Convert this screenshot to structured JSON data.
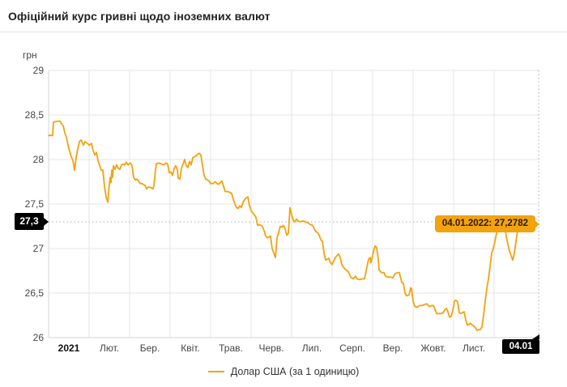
{
  "header": {
    "title": "Офіційний курс гривні щодо іноземних валют"
  },
  "colors": {
    "accent": "#f2a30e",
    "grid": "#e6e6e6",
    "axis": "#d6d6d6",
    "dotted": "#aaaaaa",
    "marker_bg": "#000000",
    "marker_text": "#ffffff"
  },
  "tooltip": {
    "text": "04.01.2022: 27,2782"
  },
  "markers": {
    "y_label": "27,3",
    "x_label": "04.01"
  },
  "legend": {
    "label": "Долар США (за 1 одиницю)"
  },
  "chart_data": {
    "type": "line",
    "title": "Офіційний курс гривні щодо іноземних валют",
    "y_unit": "грн",
    "ylim": [
      26,
      29
    ],
    "xlim_months": [
      0,
      12.13
    ],
    "grid": true,
    "legend_position": "bottom",
    "y_ticks": [
      {
        "label": "29",
        "value": 29
      },
      {
        "label": "28,5",
        "value": 28.5
      },
      {
        "label": "28",
        "value": 28
      },
      {
        "label": "27,5",
        "value": 27.5
      },
      {
        "label": "27",
        "value": 27
      },
      {
        "label": "26,5",
        "value": 26.5
      },
      {
        "label": "26",
        "value": 26
      }
    ],
    "x_tick_labels": [
      "2021",
      "Лют.",
      "Бер.",
      "Квіт.",
      "Трав.",
      "Черв.",
      "Лип.",
      "Серп.",
      "Вер.",
      "Жовт.",
      "Лист."
    ],
    "highlight": {
      "date_label": "04.01",
      "tooltip": "04.01.2022: 27,2782",
      "value": 27.2782,
      "y_level": 27.3
    },
    "series": [
      {
        "name": "Долар США (за 1 одиницю)",
        "x_unit": "months since 2021-01-01",
        "points": [
          [
            0,
            28.27
          ],
          [
            0.1,
            28.27
          ],
          [
            0.12,
            28.42
          ],
          [
            0.22,
            28.43
          ],
          [
            0.28,
            28.43
          ],
          [
            0.32,
            28.4
          ],
          [
            0.36,
            28.38
          ],
          [
            0.4,
            28.3
          ],
          [
            0.44,
            28.25
          ],
          [
            0.5,
            28.12
          ],
          [
            0.56,
            28.03
          ],
          [
            0.6,
            27.99
          ],
          [
            0.64,
            27.88
          ],
          [
            0.68,
            28.02
          ],
          [
            0.72,
            28.12
          ],
          [
            0.76,
            28.2
          ],
          [
            0.8,
            28.22
          ],
          [
            0.86,
            28.16
          ],
          [
            0.9,
            28.2
          ],
          [
            0.96,
            28.18
          ],
          [
            1,
            28.16
          ],
          [
            1.06,
            28.18
          ],
          [
            1.1,
            28.1
          ],
          [
            1.14,
            28.05
          ],
          [
            1.18,
            28.08
          ],
          [
            1.22,
            27.99
          ],
          [
            1.26,
            27.93
          ],
          [
            1.3,
            27.88
          ],
          [
            1.34,
            27.88
          ],
          [
            1.38,
            27.7
          ],
          [
            1.42,
            27.58
          ],
          [
            1.46,
            27.52
          ],
          [
            1.48,
            27.62
          ],
          [
            1.5,
            27.72
          ],
          [
            1.52,
            27.8
          ],
          [
            1.54,
            27.74
          ],
          [
            1.56,
            27.88
          ],
          [
            1.58,
            27.8
          ],
          [
            1.6,
            27.93
          ],
          [
            1.64,
            27.89
          ],
          [
            1.68,
            27.94
          ],
          [
            1.72,
            27.9
          ],
          [
            1.76,
            27.89
          ],
          [
            1.8,
            27.94
          ],
          [
            1.84,
            27.95
          ],
          [
            1.88,
            27.94
          ],
          [
            1.92,
            27.97
          ],
          [
            1.96,
            27.94
          ],
          [
            2.02,
            27.96
          ],
          [
            2.06,
            27.93
          ],
          [
            2.1,
            27.8
          ],
          [
            2.14,
            27.77
          ],
          [
            2.18,
            27.78
          ],
          [
            2.22,
            27.76
          ],
          [
            2.26,
            27.73
          ],
          [
            2.3,
            27.73
          ],
          [
            2.34,
            27.72
          ],
          [
            2.38,
            27.71
          ],
          [
            2.42,
            27.67
          ],
          [
            2.46,
            27.69
          ],
          [
            2.5,
            27.69
          ],
          [
            2.54,
            27.68
          ],
          [
            2.58,
            27.67
          ],
          [
            2.6,
            27.71
          ],
          [
            2.64,
            27.88
          ],
          [
            2.66,
            27.95
          ],
          [
            2.72,
            27.96
          ],
          [
            2.78,
            27.95
          ],
          [
            2.84,
            27.94
          ],
          [
            2.9,
            27.96
          ],
          [
            2.94,
            27.95
          ],
          [
            2.98,
            27.85
          ],
          [
            3.02,
            27.86
          ],
          [
            3.06,
            27.82
          ],
          [
            3.1,
            27.9
          ],
          [
            3.14,
            27.93
          ],
          [
            3.18,
            27.88
          ],
          [
            3.2,
            27.79
          ],
          [
            3.24,
            27.78
          ],
          [
            3.28,
            27.9
          ],
          [
            3.32,
            27.95
          ],
          [
            3.36,
            28
          ],
          [
            3.4,
            27.93
          ],
          [
            3.44,
            27.91
          ],
          [
            3.48,
            27.98
          ],
          [
            3.52,
            27.94
          ],
          [
            3.56,
            28.02
          ],
          [
            3.6,
            28.03
          ],
          [
            3.64,
            28.04
          ],
          [
            3.68,
            28.06
          ],
          [
            3.72,
            28.07
          ],
          [
            3.76,
            28.05
          ],
          [
            3.8,
            27.93
          ],
          [
            3.84,
            27.82
          ],
          [
            3.88,
            27.78
          ],
          [
            3.92,
            27.77
          ],
          [
            3.96,
            27.76
          ],
          [
            4,
            27.73
          ],
          [
            4.06,
            27.73
          ],
          [
            4.12,
            27.75
          ],
          [
            4.18,
            27.72
          ],
          [
            4.24,
            27.74
          ],
          [
            4.28,
            27.76
          ],
          [
            4.32,
            27.7
          ],
          [
            4.36,
            27.64
          ],
          [
            4.42,
            27.64
          ],
          [
            4.48,
            27.63
          ],
          [
            4.52,
            27.62
          ],
          [
            4.56,
            27.55
          ],
          [
            4.6,
            27.5
          ],
          [
            4.64,
            27.46
          ],
          [
            4.68,
            27.45
          ],
          [
            4.72,
            27.48
          ],
          [
            4.76,
            27.46
          ],
          [
            4.8,
            27.52
          ],
          [
            4.84,
            27.55
          ],
          [
            4.88,
            27.57
          ],
          [
            4.92,
            27.58
          ],
          [
            4.96,
            27.48
          ],
          [
            5,
            27.43
          ],
          [
            5.04,
            27.4
          ],
          [
            5.08,
            27.38
          ],
          [
            5.12,
            27.35
          ],
          [
            5.16,
            27.26
          ],
          [
            5.2,
            27.27
          ],
          [
            5.24,
            27.26
          ],
          [
            5.28,
            27.25
          ],
          [
            5.32,
            27.2
          ],
          [
            5.36,
            27.14
          ],
          [
            5.4,
            27.12
          ],
          [
            5.44,
            27.13
          ],
          [
            5.48,
            27.14
          ],
          [
            5.52,
            27
          ],
          [
            5.56,
            26.95
          ],
          [
            5.6,
            26.9
          ],
          [
            5.64,
            27.12
          ],
          [
            5.68,
            27.18
          ],
          [
            5.72,
            27.25
          ],
          [
            5.76,
            27.24
          ],
          [
            5.8,
            27.26
          ],
          [
            5.84,
            27.22
          ],
          [
            5.88,
            27.15
          ],
          [
            5.92,
            27.17
          ],
          [
            5.96,
            27.46
          ],
          [
            6,
            27.38
          ],
          [
            6.04,
            27.32
          ],
          [
            6.08,
            27.3
          ],
          [
            6.12,
            27.33
          ],
          [
            6.16,
            27.31
          ],
          [
            6.22,
            27.3
          ],
          [
            6.28,
            27.31
          ],
          [
            6.34,
            27.3
          ],
          [
            6.4,
            27.29
          ],
          [
            6.46,
            27.27
          ],
          [
            6.52,
            27.26
          ],
          [
            6.56,
            27.22
          ],
          [
            6.6,
            27.19
          ],
          [
            6.64,
            27.18
          ],
          [
            6.68,
            27.15
          ],
          [
            6.72,
            27.1
          ],
          [
            6.76,
            27.08
          ],
          [
            6.8,
            26.95
          ],
          [
            6.84,
            26.87
          ],
          [
            6.88,
            26.88
          ],
          [
            6.92,
            26.89
          ],
          [
            6.96,
            26.84
          ],
          [
            7,
            26.82
          ],
          [
            7.04,
            26.86
          ],
          [
            7.08,
            26.9
          ],
          [
            7.12,
            26.92
          ],
          [
            7.16,
            26.94
          ],
          [
            7.2,
            26.9
          ],
          [
            7.24,
            26.82
          ],
          [
            7.28,
            26.79
          ],
          [
            7.34,
            26.76
          ],
          [
            7.4,
            26.74
          ],
          [
            7.46,
            26.68
          ],
          [
            7.52,
            26.66
          ],
          [
            7.58,
            26.69
          ],
          [
            7.62,
            26.66
          ],
          [
            7.68,
            26.65
          ],
          [
            7.74,
            26.66
          ],
          [
            7.8,
            26.66
          ],
          [
            7.86,
            26.79
          ],
          [
            7.9,
            26.88
          ],
          [
            7.94,
            26.9
          ],
          [
            7.96,
            26.84
          ],
          [
            8,
            26.92
          ],
          [
            8.04,
            27
          ],
          [
            8.06,
            27.03
          ],
          [
            8.1,
            27.01
          ],
          [
            8.14,
            26.88
          ],
          [
            8.16,
            26.76
          ],
          [
            8.22,
            26.73
          ],
          [
            8.28,
            26.73
          ],
          [
            8.32,
            26.69
          ],
          [
            8.38,
            26.68
          ],
          [
            8.44,
            26.68
          ],
          [
            8.5,
            26.67
          ],
          [
            8.56,
            26.72
          ],
          [
            8.62,
            26.73
          ],
          [
            8.66,
            26.73
          ],
          [
            8.72,
            26.62
          ],
          [
            8.76,
            26.61
          ],
          [
            8.8,
            26.5
          ],
          [
            8.84,
            26.47
          ],
          [
            8.9,
            26.48
          ],
          [
            8.94,
            26.56
          ],
          [
            8.96,
            26.55
          ],
          [
            9,
            26.41
          ],
          [
            9.04,
            26.35
          ],
          [
            9.1,
            26.34
          ],
          [
            9.16,
            26.36
          ],
          [
            9.22,
            26.36
          ],
          [
            9.28,
            26.37
          ],
          [
            9.34,
            26.38
          ],
          [
            9.4,
            26.35
          ],
          [
            9.46,
            26.36
          ],
          [
            9.5,
            26.36
          ],
          [
            9.54,
            26.32
          ],
          [
            9.58,
            26.27
          ],
          [
            9.64,
            26.27
          ],
          [
            9.7,
            26.27
          ],
          [
            9.74,
            26.28
          ],
          [
            9.78,
            26.31
          ],
          [
            9.82,
            26.33
          ],
          [
            9.86,
            26.29
          ],
          [
            9.9,
            26.23
          ],
          [
            9.94,
            26.24
          ],
          [
            9.98,
            26.3
          ],
          [
            10.02,
            26.41
          ],
          [
            10.06,
            26.42
          ],
          [
            10.1,
            26.4
          ],
          [
            10.14,
            26.28
          ],
          [
            10.18,
            26.27
          ],
          [
            10.22,
            26.28
          ],
          [
            10.26,
            26.29
          ],
          [
            10.3,
            26.2
          ],
          [
            10.34,
            26.14
          ],
          [
            10.38,
            26.15
          ],
          [
            10.42,
            26.16
          ],
          [
            10.46,
            26.14
          ],
          [
            10.5,
            26.13
          ],
          [
            10.54,
            26.11
          ],
          [
            10.58,
            26.08
          ],
          [
            10.62,
            26.09
          ],
          [
            10.66,
            26.09
          ],
          [
            10.7,
            26.12
          ],
          [
            10.74,
            26.25
          ],
          [
            10.78,
            26.41
          ],
          [
            10.82,
            26.55
          ],
          [
            10.86,
            26.66
          ],
          [
            10.9,
            26.8
          ],
          [
            10.94,
            26.95
          ],
          [
            10.98,
            27
          ],
          [
            11.02,
            27.08
          ],
          [
            11.06,
            27.17
          ],
          [
            11.1,
            27.23
          ],
          [
            11.14,
            27.28
          ],
          [
            11.18,
            27.31
          ],
          [
            11.22,
            27.3
          ],
          [
            11.26,
            27.25
          ],
          [
            11.3,
            27.14
          ],
          [
            11.34,
            27.05
          ],
          [
            11.38,
            26.97
          ],
          [
            11.42,
            26.92
          ],
          [
            11.46,
            26.87
          ],
          [
            11.5,
            26.95
          ],
          [
            11.54,
            27.08
          ],
          [
            11.58,
            27.2
          ],
          [
            11.62,
            27.26
          ],
          [
            11.68,
            27.3
          ],
          [
            11.76,
            27.31
          ],
          [
            11.84,
            27.3
          ],
          [
            11.92,
            27.29
          ],
          [
            12,
            27.28
          ],
          [
            12.06,
            27.2782
          ]
        ]
      }
    ]
  }
}
